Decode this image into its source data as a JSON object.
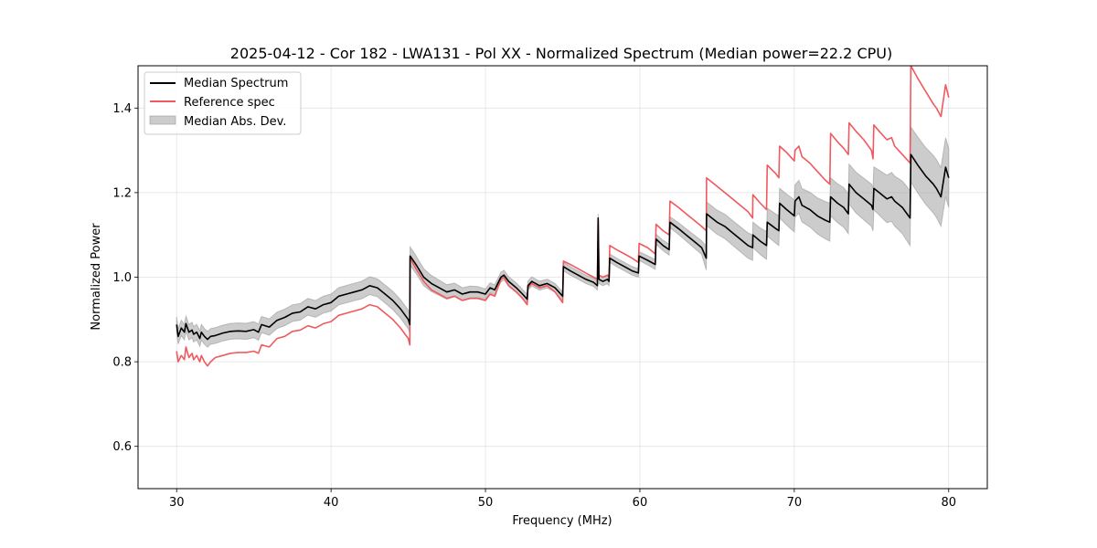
{
  "chart_data": {
    "type": "line",
    "title": "2025-04-12 - Cor 182 - LWA131 - Pol XX - Normalized Spectrum (Median power=22.2 CPU)",
    "xlabel": "Frequency (MHz)",
    "ylabel": "Normalized Power",
    "xlim": [
      27.5,
      82.5
    ],
    "ylim": [
      0.5,
      1.5
    ],
    "xticks": [
      30,
      40,
      50,
      60,
      70,
      80
    ],
    "xtick_labels": [
      "30",
      "40",
      "50",
      "60",
      "70",
      "80"
    ],
    "yticks": [
      0.6,
      0.8,
      1.0,
      1.2,
      1.4
    ],
    "ytick_labels": [
      "0.6",
      "0.8",
      "1.0",
      "1.2",
      "1.4"
    ],
    "grid": true,
    "legend_position": "top-left",
    "legend": [
      {
        "label": "Median Spectrum",
        "kind": "line",
        "color": "#000000"
      },
      {
        "label": "Reference spec",
        "kind": "line",
        "color": "#f0595e"
      },
      {
        "label": "Median Abs. Dev.",
        "kind": "patch",
        "color": "#999999"
      }
    ],
    "series": [
      {
        "name": "Median Spectrum",
        "color": "#000000",
        "x": [
          30.0,
          30.1,
          30.3,
          30.5,
          30.6,
          30.8,
          31.0,
          31.1,
          31.3,
          31.5,
          31.6,
          31.8,
          32.0,
          32.2,
          32.5,
          33.0,
          33.5,
          34.0,
          34.5,
          35.0,
          35.3,
          35.5,
          36.0,
          36.5,
          37.0,
          37.5,
          38.0,
          38.5,
          39.0,
          39.5,
          40.0,
          40.5,
          41.0,
          41.5,
          42.0,
          42.5,
          43.0,
          43.5,
          44.0,
          44.5,
          45.0,
          45.1,
          45.12,
          45.5,
          46.0,
          46.5,
          47.0,
          47.5,
          48.0,
          48.5,
          49.0,
          49.5,
          50.0,
          50.3,
          50.6,
          51.0,
          51.2,
          51.5,
          52.0,
          52.4,
          52.7,
          52.75,
          53.0,
          53.5,
          54.0,
          54.5,
          55.0,
          55.05,
          55.5,
          56.0,
          56.5,
          57.0,
          57.25,
          57.3,
          57.35,
          57.6,
          57.9,
          58.0,
          58.05,
          58.5,
          59.0,
          59.5,
          59.9,
          59.95,
          60.5,
          61.0,
          61.05,
          61.5,
          61.9,
          61.95,
          62.5,
          63.0,
          63.5,
          64.0,
          64.3,
          64.32,
          65.0,
          65.5,
          66.0,
          66.5,
          67.0,
          67.3,
          67.32,
          67.8,
          68.2,
          68.25,
          68.8,
          69.0,
          69.05,
          69.5,
          70.0,
          70.05,
          70.3,
          70.5,
          71.0,
          71.5,
          72.0,
          72.3,
          72.35,
          72.8,
          73.2,
          73.5,
          73.55,
          74.0,
          74.5,
          75.0,
          75.1,
          75.15,
          75.5,
          76.0,
          76.3,
          76.5,
          77.0,
          77.5,
          77.55,
          78.0,
          78.5,
          79.0,
          79.2,
          79.5,
          79.8,
          80.0
        ],
        "y": [
          0.888,
          0.86,
          0.88,
          0.87,
          0.89,
          0.87,
          0.875,
          0.865,
          0.87,
          0.855,
          0.87,
          0.86,
          0.853,
          0.86,
          0.862,
          0.868,
          0.872,
          0.873,
          0.872,
          0.876,
          0.87,
          0.888,
          0.882,
          0.898,
          0.905,
          0.915,
          0.918,
          0.93,
          0.925,
          0.935,
          0.94,
          0.955,
          0.96,
          0.965,
          0.97,
          0.98,
          0.975,
          0.96,
          0.945,
          0.925,
          0.9,
          0.888,
          1.05,
          1.03,
          1.0,
          0.985,
          0.975,
          0.965,
          0.97,
          0.96,
          0.965,
          0.965,
          0.96,
          0.975,
          0.97,
          1.0,
          1.005,
          0.99,
          0.975,
          0.96,
          0.948,
          0.98,
          0.99,
          0.98,
          0.985,
          0.975,
          0.955,
          1.025,
          1.015,
          1.005,
          0.995,
          0.988,
          0.98,
          1.14,
          0.995,
          0.99,
          0.995,
          0.99,
          1.045,
          1.035,
          1.025,
          1.015,
          1.01,
          1.05,
          1.04,
          1.03,
          1.09,
          1.075,
          1.065,
          1.13,
          1.115,
          1.1,
          1.085,
          1.07,
          1.045,
          1.15,
          1.13,
          1.12,
          1.105,
          1.09,
          1.075,
          1.07,
          1.1,
          1.085,
          1.075,
          1.13,
          1.115,
          1.11,
          1.175,
          1.16,
          1.145,
          1.18,
          1.19,
          1.17,
          1.16,
          1.145,
          1.135,
          1.13,
          1.19,
          1.175,
          1.165,
          1.15,
          1.22,
          1.2,
          1.185,
          1.17,
          1.16,
          1.21,
          1.2,
          1.185,
          1.19,
          1.18,
          1.165,
          1.14,
          1.29,
          1.265,
          1.24,
          1.22,
          1.21,
          1.19,
          1.26,
          1.235
        ]
      },
      {
        "name": "Reference spec",
        "color": "#f0595e",
        "x": [
          30.0,
          30.1,
          30.3,
          30.5,
          30.6,
          30.8,
          31.0,
          31.1,
          31.3,
          31.5,
          31.6,
          31.8,
          32.0,
          32.2,
          32.5,
          33.0,
          33.5,
          34.0,
          34.5,
          35.0,
          35.3,
          35.5,
          36.0,
          36.5,
          37.0,
          37.5,
          38.0,
          38.5,
          39.0,
          39.5,
          40.0,
          40.5,
          41.0,
          41.5,
          42.0,
          42.5,
          43.0,
          43.5,
          44.0,
          44.5,
          45.0,
          45.1,
          45.12,
          45.5,
          46.0,
          46.5,
          47.0,
          47.5,
          48.0,
          48.5,
          49.0,
          49.5,
          50.0,
          50.3,
          50.6,
          51.0,
          51.2,
          51.5,
          52.0,
          52.4,
          52.7,
          52.75,
          53.0,
          53.5,
          54.0,
          54.5,
          55.0,
          55.05,
          55.5,
          56.0,
          56.5,
          57.0,
          57.25,
          57.3,
          57.35,
          57.6,
          57.9,
          58.0,
          58.05,
          58.5,
          59.0,
          59.5,
          59.9,
          59.95,
          60.5,
          61.0,
          61.05,
          61.5,
          61.9,
          61.95,
          62.5,
          63.0,
          63.5,
          64.0,
          64.3,
          64.32,
          65.0,
          65.5,
          66.0,
          66.5,
          67.0,
          67.3,
          67.32,
          67.8,
          68.2,
          68.25,
          68.8,
          69.0,
          69.05,
          69.5,
          70.0,
          70.05,
          70.3,
          70.5,
          71.0,
          71.5,
          72.0,
          72.3,
          72.35,
          72.8,
          73.2,
          73.5,
          73.55,
          74.0,
          74.5,
          75.0,
          75.1,
          75.15,
          75.5,
          76.0,
          76.3,
          76.5,
          77.0,
          77.5,
          77.55,
          78.0,
          78.5,
          79.0,
          79.2,
          79.5,
          79.8,
          80.0
        ],
        "y": [
          0.825,
          0.8,
          0.815,
          0.805,
          0.835,
          0.81,
          0.82,
          0.805,
          0.815,
          0.8,
          0.815,
          0.8,
          0.79,
          0.8,
          0.81,
          0.815,
          0.82,
          0.822,
          0.822,
          0.825,
          0.82,
          0.84,
          0.835,
          0.855,
          0.86,
          0.872,
          0.875,
          0.885,
          0.88,
          0.89,
          0.895,
          0.91,
          0.915,
          0.92,
          0.925,
          0.935,
          0.93,
          0.915,
          0.9,
          0.88,
          0.855,
          0.84,
          1.045,
          1.02,
          0.99,
          0.97,
          0.96,
          0.95,
          0.955,
          0.945,
          0.95,
          0.95,
          0.945,
          0.96,
          0.955,
          0.995,
          1.0,
          0.98,
          0.965,
          0.95,
          0.935,
          0.975,
          0.985,
          0.975,
          0.98,
          0.965,
          0.94,
          1.038,
          1.03,
          1.02,
          1.01,
          1.0,
          0.995,
          1.135,
          1.005,
          1.0,
          1.005,
          1.0,
          1.075,
          1.065,
          1.055,
          1.045,
          1.035,
          1.08,
          1.07,
          1.055,
          1.125,
          1.11,
          1.1,
          1.18,
          1.165,
          1.15,
          1.135,
          1.12,
          1.11,
          1.235,
          1.215,
          1.2,
          1.185,
          1.17,
          1.155,
          1.14,
          1.195,
          1.175,
          1.16,
          1.265,
          1.245,
          1.235,
          1.31,
          1.295,
          1.275,
          1.3,
          1.31,
          1.285,
          1.27,
          1.25,
          1.23,
          1.22,
          1.34,
          1.32,
          1.305,
          1.29,
          1.365,
          1.345,
          1.325,
          1.3,
          1.28,
          1.36,
          1.345,
          1.325,
          1.33,
          1.31,
          1.29,
          1.27,
          1.5,
          1.47,
          1.44,
          1.41,
          1.4,
          1.38,
          1.455,
          1.425
        ]
      }
    ],
    "band": {
      "name": "Median Abs. Dev.",
      "color": "#999999",
      "around_series": "Median Spectrum",
      "half_width_x": [
        30,
        40,
        45,
        50,
        55,
        60,
        64,
        64.3,
        67.3,
        70,
        72.3,
        75,
        77.5,
        80
      ],
      "half_width": [
        0.018,
        0.02,
        0.022,
        0.012,
        0.01,
        0.01,
        0.016,
        0.028,
        0.03,
        0.038,
        0.045,
        0.05,
        0.065,
        0.07
      ]
    }
  }
}
